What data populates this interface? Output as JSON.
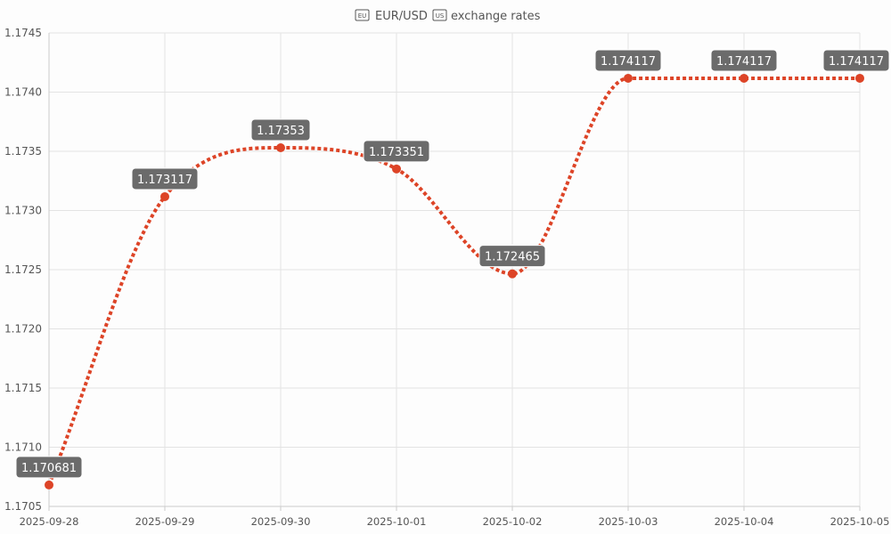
{
  "title": "EUR/USD exchange rates",
  "title_icons": [
    "flag-eu-icon",
    "flag-us-icon"
  ],
  "chart_data": {
    "type": "line",
    "title": "EUR/USD exchange rates",
    "xlabel": "",
    "ylabel": "",
    "categories": [
      "2025-09-28",
      "2025-09-29",
      "2025-09-30",
      "2025-10-01",
      "2025-10-02",
      "2025-10-03",
      "2025-10-04",
      "2025-10-05"
    ],
    "series": [
      {
        "values": [
          1.170681,
          1.173117,
          1.17353,
          1.173351,
          1.172465,
          1.174117,
          1.174117,
          1.174117
        ],
        "labels": [
          "1.170681",
          "1.173117",
          "1.17353",
          "1.173351",
          "1.172465",
          "1.174117",
          "1.174117",
          "1.174117"
        ],
        "color": "#dd4427",
        "line_style": "dotted",
        "smooth": true
      }
    ],
    "ylim": [
      1.1705,
      1.1745
    ],
    "yticks": [
      "1.1745",
      "1.1740",
      "1.1735",
      "1.1730",
      "1.1725",
      "1.1720",
      "1.1715",
      "1.1710",
      "1.1705"
    ],
    "grid": true,
    "label_bg": "#6b6b6b"
  }
}
